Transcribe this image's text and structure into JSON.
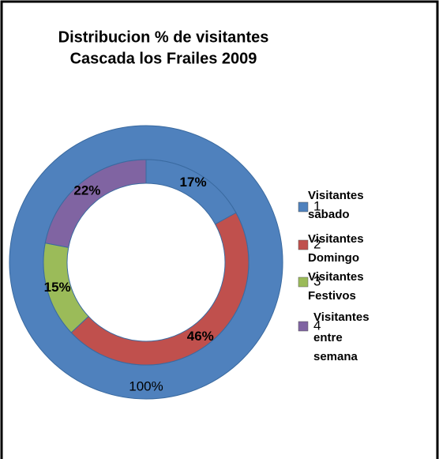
{
  "chart_data": {
    "type": "doughnut",
    "title": [
      "Distribucion % de visitantes",
      "Cascada los Frailes 2009"
    ],
    "categories": [
      "1",
      "2",
      "3",
      "4"
    ],
    "category_notes": [
      [
        "Visitantes",
        "sabado"
      ],
      [
        "Visitantes",
        "Domingo"
      ],
      [
        "Visitantes",
        "Festivos"
      ],
      [
        "Visitantes",
        "entre",
        "semana"
      ]
    ],
    "colors": [
      "#4f81bd",
      "#c0504d",
      "#9bbb59",
      "#8064a2"
    ],
    "rings": [
      {
        "values": [
          100
        ],
        "value_labels": [
          "100%"
        ],
        "colors": [
          "#4f81bd"
        ]
      },
      {
        "values": [
          17,
          46,
          15,
          22
        ],
        "value_labels": [
          "17%",
          "46%",
          "15%",
          "22%"
        ],
        "colors": [
          "#4f81bd",
          "#c0504d",
          "#9bbb59",
          "#8064a2"
        ]
      }
    ]
  }
}
